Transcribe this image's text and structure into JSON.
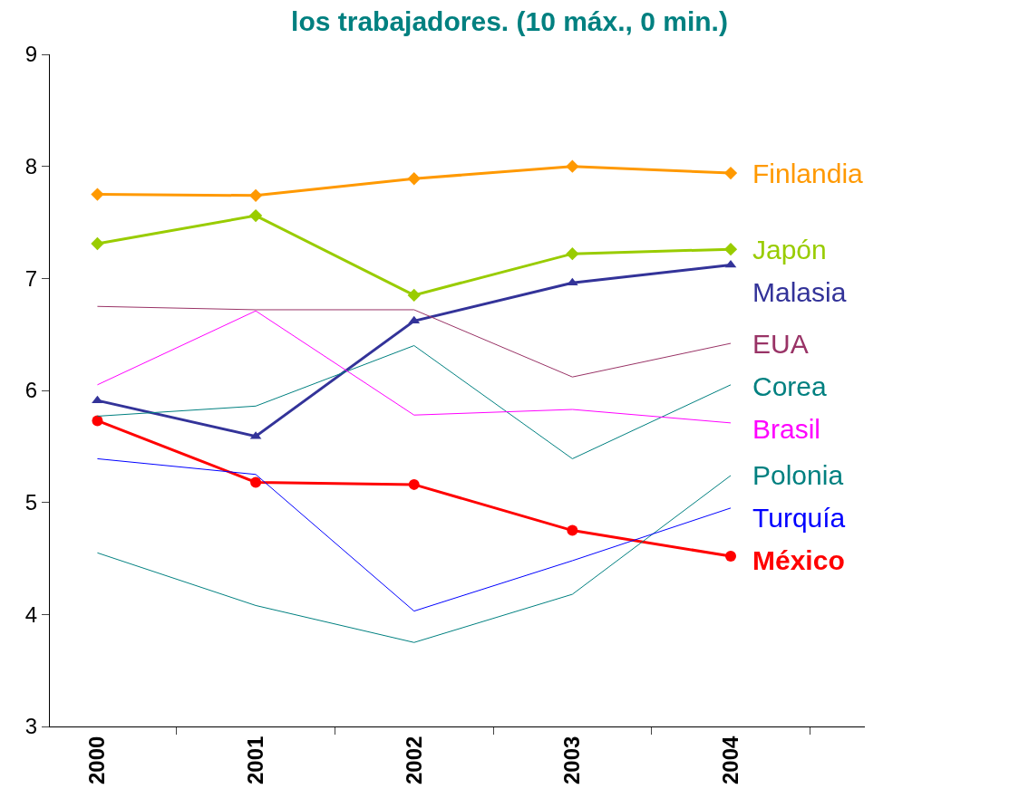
{
  "chart_data": {
    "type": "line",
    "title": "los trabajadores. (10 máx., 0 min.)",
    "categories": [
      "2000",
      "2001",
      "2002",
      "2003",
      "2004"
    ],
    "ylim": [
      3,
      9
    ],
    "yticks": [
      3,
      4,
      5,
      6,
      7,
      8,
      9
    ],
    "series": [
      {
        "name": "Finlandia",
        "color": "#ff9900",
        "marker": "diamond",
        "values": [
          7.75,
          7.74,
          7.89,
          8.0,
          7.94
        ]
      },
      {
        "name": "Japón",
        "color": "#99cc00",
        "marker": "diamond",
        "values": [
          7.31,
          7.56,
          6.85,
          7.22,
          7.26
        ]
      },
      {
        "name": "Malasia",
        "color": "#333399",
        "marker": "triangle",
        "values": [
          5.91,
          5.59,
          6.62,
          6.96,
          7.12
        ]
      },
      {
        "name": "EUA",
        "color": "#993366",
        "marker": "none",
        "values": [
          6.75,
          6.72,
          6.72,
          6.12,
          6.42
        ]
      },
      {
        "name": "Corea",
        "color": "#008080",
        "marker": "none",
        "values": [
          5.77,
          5.86,
          6.4,
          5.39,
          6.05
        ]
      },
      {
        "name": "Brasil",
        "color": "#ff00ff",
        "marker": "none",
        "values": [
          6.05,
          6.71,
          5.78,
          5.83,
          5.71
        ]
      },
      {
        "name": "Polonia",
        "color": "#008080",
        "marker": "none",
        "values": [
          4.55,
          4.08,
          3.75,
          4.18,
          5.24
        ]
      },
      {
        "name": "Turquía",
        "color": "#0000ff",
        "marker": "none",
        "values": [
          5.39,
          5.25,
          4.03,
          4.48,
          4.95
        ]
      },
      {
        "name": "México",
        "color": "#ff0000",
        "marker": "circle",
        "values": [
          5.73,
          5.18,
          5.16,
          4.75,
          4.52
        ]
      }
    ]
  }
}
